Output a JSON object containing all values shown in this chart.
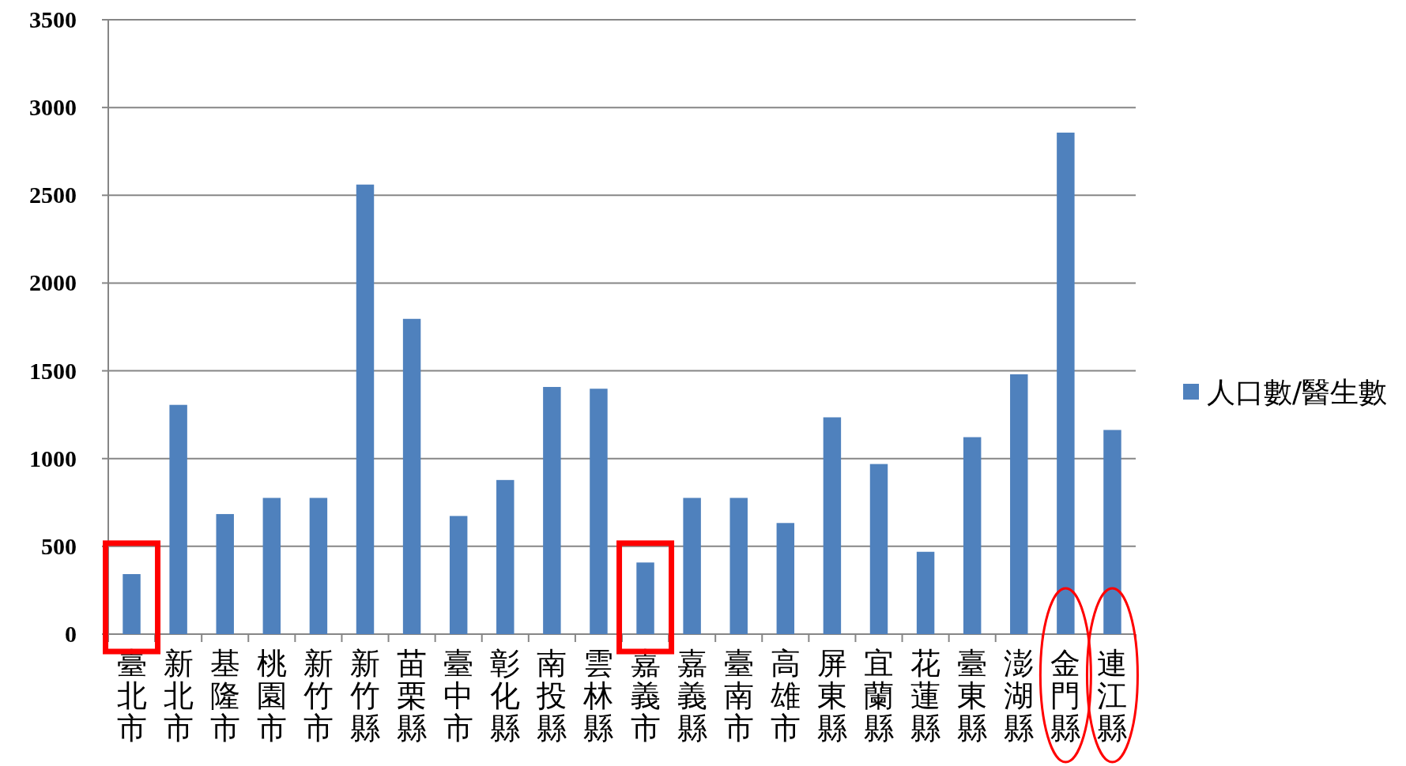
{
  "chart_data": {
    "type": "bar",
    "categories": [
      "臺北市",
      "新北市",
      "基隆市",
      "桃園市",
      "新竹市",
      "新竹縣",
      "苗栗縣",
      "臺中市",
      "彰化縣",
      "南投縣",
      "雲林縣",
      "嘉義市",
      "嘉義縣",
      "臺南市",
      "高雄市",
      "屏東縣",
      "宜蘭縣",
      "花蓮縣",
      "臺東縣",
      "澎湖縣",
      "金門縣",
      "連江縣"
    ],
    "series": [
      {
        "name": "人口數/醫生數",
        "color": "#4f81bd",
        "values": [
          342,
          1306,
          684,
          776,
          776,
          2561,
          1796,
          673,
          878,
          1408,
          1398,
          408,
          776,
          776,
          633,
          1235,
          969,
          469,
          1122,
          1480,
          2857,
          1163
        ]
      }
    ],
    "ylim": [
      0,
      3500
    ],
    "yticks": [
      0,
      500,
      1000,
      1500,
      2000,
      2500,
      3000,
      3500
    ],
    "grid": "y",
    "legend": "right"
  }
}
